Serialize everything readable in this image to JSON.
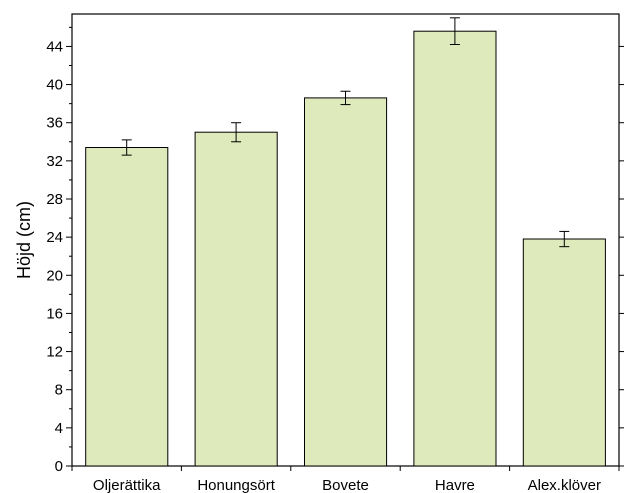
{
  "chart_data": {
    "type": "bar",
    "categories": [
      "Oljerättika",
      "Honungsört",
      "Bovete",
      "Havre",
      "Alex.klöver"
    ],
    "values": [
      33.4,
      35.0,
      38.6,
      45.6,
      23.8
    ],
    "errors": [
      0.8,
      1.0,
      0.7,
      1.4,
      0.8
    ],
    "xlabel": "",
    "ylabel": "Höjd (cm)",
    "ylim": [
      0,
      47.4
    ],
    "yticks": [
      0,
      4,
      8,
      12,
      16,
      20,
      24,
      28,
      32,
      36,
      40,
      44
    ],
    "grid": false,
    "legend": "none",
    "bar_color": "#dfeabc",
    "bar_edge_color": "#000000"
  }
}
